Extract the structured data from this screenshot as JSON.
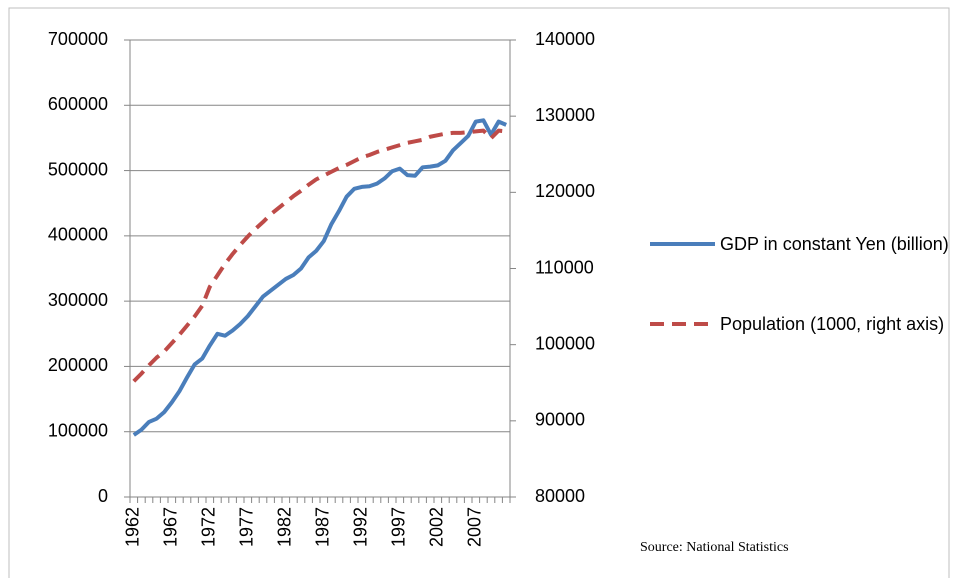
{
  "chart_data": {
    "type": "line",
    "categories": [
      "1962",
      null,
      null,
      null,
      null,
      "1967",
      null,
      null,
      null,
      null,
      "1972",
      null,
      null,
      null,
      null,
      "1977",
      null,
      null,
      null,
      null,
      "1982",
      null,
      null,
      null,
      null,
      "1987",
      null,
      null,
      null,
      null,
      "1992",
      null,
      null,
      null,
      null,
      "1997",
      null,
      null,
      null,
      null,
      "2002",
      null,
      null,
      null,
      null,
      "2007",
      null,
      null,
      null,
      null
    ],
    "series": [
      {
        "name": "GDP in constant Yen (billion)",
        "color": "#4a7ebb",
        "values": [
          95000,
          103000,
          115000,
          120000,
          130000,
          145000,
          162000,
          183000,
          203000,
          212000,
          232000,
          250000,
          247000,
          255000,
          265000,
          277000,
          292000,
          307000,
          316000,
          325000,
          334000,
          340000,
          350000,
          367000,
          377000,
          392000,
          418000,
          438000,
          460000,
          472000,
          475000,
          476000,
          480000,
          488000,
          499000,
          503000,
          493000,
          492000,
          505000,
          506000,
          508000,
          515000,
          531000,
          542000,
          553000,
          575000,
          577000,
          555000,
          575000,
          570000
        ]
      },
      {
        "name": "Population (1000, right axis)",
        "color": "#be4b48",
        "axis": "y2",
        "dashed": true,
        "values": [
          95200,
          96200,
          97300,
          98300,
          99100,
          100200,
          101300,
          102500,
          103700,
          105100,
          107600,
          109100,
          110600,
          111900,
          113100,
          114200,
          115200,
          116100,
          117100,
          117900,
          118700,
          119500,
          120200,
          121000,
          121700,
          122200,
          122700,
          123200,
          123600,
          124100,
          124600,
          124900,
          125300,
          125600,
          125900,
          126200,
          126500,
          126700,
          126900,
          127300,
          127500,
          127700,
          127800,
          127800,
          127900,
          128000,
          128100,
          127100,
          128100,
          128000
        ]
      }
    ],
    "ylim": [
      0,
      700000
    ],
    "yticks": [
      0,
      100000,
      200000,
      300000,
      400000,
      500000,
      600000,
      700000
    ],
    "y2lim": [
      80000,
      140000
    ],
    "y2ticks": [
      80000,
      90000,
      100000,
      110000,
      120000,
      130000,
      140000
    ],
    "grid": true,
    "legend": "right",
    "source": "Source: National Statistics"
  }
}
